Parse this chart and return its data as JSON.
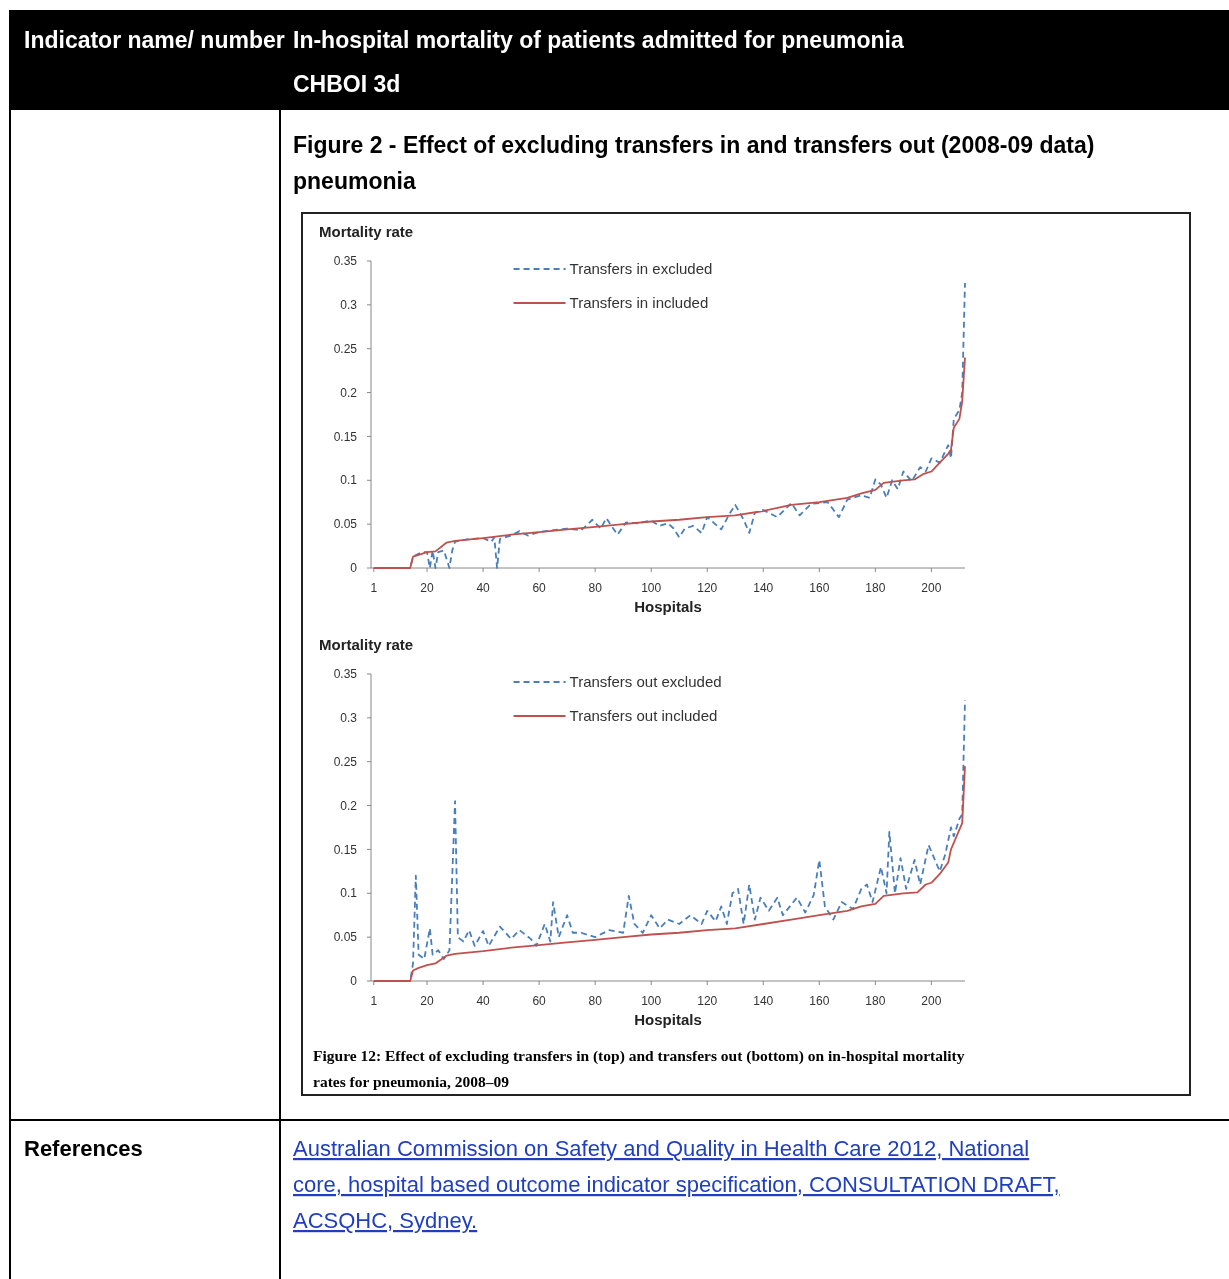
{
  "chart_data": [
    {
      "type": "line",
      "title": "Figure 2 - Effect of excluding transfers in and transfers out (2008-09 data) pneumonia",
      "ylabel": "Mortality rate",
      "xlabel": "Hospitals",
      "xlim": [
        0,
        212
      ],
      "ylim": [
        0,
        0.35
      ],
      "xticks": [
        1,
        20,
        40,
        60,
        80,
        100,
        120,
        140,
        160,
        180,
        200
      ],
      "yticks": [
        0,
        0.05,
        0.1,
        0.15,
        0.2,
        0.25,
        0.3,
        0.35
      ],
      "grid": false,
      "legend": "top",
      "marker": "none",
      "annotations": [
        "Indicator name/ number",
        "In-hospital mortality of patients admitted for pneumonia",
        "CHBOI 3d",
        "References",
        "Australian Commission on Safety and Quality in Health Care 2012, National core, hospital based outcome indicator specification, CONSULTATION DRAFT, ACSQHC, Sydney."
      ],
      "series": [
        {
          "name": "Transfers in excluded",
          "color": "#4a7ebb",
          "line_style": "dashed",
          "x": [
            1,
            14,
            15,
            18,
            20,
            21,
            22,
            23,
            24,
            26,
            28,
            29,
            30,
            35,
            40,
            43,
            44,
            45,
            46,
            50,
            53,
            56,
            60,
            70,
            75,
            79,
            82,
            84,
            86,
            88,
            91,
            95,
            100,
            103,
            106,
            108,
            110,
            112,
            115,
            118,
            120,
            125,
            128,
            130,
            133,
            135,
            137,
            140,
            145,
            150,
            153,
            157,
            163,
            167,
            170,
            175,
            178,
            180,
            182,
            184,
            186,
            188,
            190,
            193,
            196,
            198,
            200,
            203,
            206,
            207,
            208,
            210,
            211,
            212
          ],
          "values": [
            0,
            0,
            0.013,
            0.018,
            0.018,
            0,
            0.02,
            0,
            0.018,
            0.02,
            0,
            0.02,
            0.03,
            0.033,
            0.034,
            0.03,
            0.035,
            0,
            0.033,
            0.037,
            0.042,
            0.037,
            0.041,
            0.045,
            0.043,
            0.055,
            0.045,
            0.057,
            0.047,
            0.038,
            0.052,
            0.051,
            0.054,
            0.048,
            0.051,
            0.045,
            0.035,
            0.045,
            0.048,
            0.04,
            0.058,
            0.044,
            0.062,
            0.072,
            0.055,
            0.04,
            0.063,
            0.066,
            0.058,
            0.074,
            0.06,
            0.073,
            0.075,
            0.058,
            0.078,
            0.083,
            0.08,
            0.101,
            0.095,
            0.08,
            0.1,
            0.09,
            0.11,
            0.099,
            0.115,
            0.11,
            0.125,
            0.12,
            0.14,
            0.125,
            0.17,
            0.18,
            0.2,
            0.325
          ]
        },
        {
          "name": "Transfers in included",
          "color": "#c0504d",
          "line_style": "solid",
          "x": [
            1,
            14,
            15,
            17,
            20,
            23,
            27,
            30,
            40,
            50,
            60,
            70,
            80,
            90,
            100,
            110,
            120,
            130,
            140,
            150,
            160,
            170,
            175,
            180,
            183,
            190,
            194,
            197,
            200,
            203,
            206,
            207,
            208,
            210,
            211,
            212
          ],
          "values": [
            0,
            0,
            0.013,
            0.015,
            0.018,
            0.019,
            0.029,
            0.031,
            0.034,
            0.038,
            0.041,
            0.044,
            0.047,
            0.05,
            0.053,
            0.055,
            0.058,
            0.06,
            0.065,
            0.072,
            0.075,
            0.08,
            0.085,
            0.089,
            0.097,
            0.1,
            0.101,
            0.107,
            0.11,
            0.12,
            0.13,
            0.135,
            0.16,
            0.17,
            0.19,
            0.24
          ]
        }
      ]
    },
    {
      "type": "line",
      "ylabel": "Mortality rate",
      "xlabel": "Hospitals",
      "xlim": [
        0,
        212
      ],
      "ylim": [
        0,
        0.35
      ],
      "xticks": [
        1,
        20,
        40,
        60,
        80,
        100,
        120,
        140,
        160,
        180,
        200
      ],
      "yticks": [
        0,
        0.05,
        0.1,
        0.15,
        0.2,
        0.25,
        0.3,
        0.35
      ],
      "grid": false,
      "legend": "top",
      "marker": "none",
      "annotations": [
        "Figure 12: Effect of excluding transfers in (top) and transfers out (bottom) on in-hospital mortality rates for pneumonia, 2008–09"
      ],
      "series": [
        {
          "name": "Transfers out excluded",
          "color": "#4a7ebb",
          "line_style": "dashed",
          "x": [
            1,
            14,
            15,
            16,
            17,
            19,
            21,
            22,
            24,
            26,
            28,
            30,
            31,
            33,
            35,
            37,
            40,
            42,
            46,
            50,
            53,
            57,
            59,
            62,
            64,
            65,
            67,
            70,
            72,
            75,
            80,
            85,
            90,
            92,
            94,
            97,
            100,
            103,
            106,
            110,
            114,
            118,
            120,
            123,
            125,
            127,
            129,
            131,
            133,
            135,
            137,
            139,
            142,
            145,
            147,
            152,
            155,
            158,
            160,
            162,
            165,
            168,
            172,
            175,
            177,
            179,
            182,
            184,
            185,
            187,
            189,
            191,
            194,
            196,
            199,
            201,
            203,
            205,
            207,
            208,
            210,
            211,
            212
          ],
          "values": [
            0,
            0,
            0.02,
            0.12,
            0.03,
            0.025,
            0.06,
            0.03,
            0.035,
            0.025,
            0.035,
            0.205,
            0.05,
            0.045,
            0.058,
            0.04,
            0.057,
            0.04,
            0.062,
            0.048,
            0.058,
            0.048,
            0.04,
            0.065,
            0.045,
            0.09,
            0.05,
            0.075,
            0.055,
            0.055,
            0.05,
            0.058,
            0.055,
            0.097,
            0.065,
            0.055,
            0.075,
            0.06,
            0.07,
            0.065,
            0.075,
            0.065,
            0.08,
            0.068,
            0.085,
            0.065,
            0.1,
            0.105,
            0.065,
            0.11,
            0.07,
            0.095,
            0.08,
            0.095,
            0.075,
            0.095,
            0.078,
            0.098,
            0.138,
            0.085,
            0.07,
            0.09,
            0.082,
            0.105,
            0.11,
            0.09,
            0.13,
            0.1,
            0.17,
            0.1,
            0.14,
            0.105,
            0.138,
            0.11,
            0.155,
            0.14,
            0.125,
            0.145,
            0.175,
            0.165,
            0.185,
            0.19,
            0.32
          ]
        },
        {
          "name": "Transfers out included",
          "color": "#c0504d",
          "line_style": "solid",
          "x": [
            1,
            14,
            15,
            17,
            20,
            23,
            27,
            30,
            40,
            50,
            60,
            70,
            80,
            90,
            100,
            110,
            120,
            130,
            140,
            150,
            160,
            170,
            175,
            180,
            183,
            190,
            195,
            198,
            200,
            203,
            206,
            207,
            209,
            211,
            212
          ],
          "values": [
            0,
            0,
            0.012,
            0.015,
            0.018,
            0.02,
            0.029,
            0.031,
            0.034,
            0.038,
            0.041,
            0.044,
            0.047,
            0.05,
            0.053,
            0.055,
            0.058,
            0.06,
            0.065,
            0.07,
            0.075,
            0.08,
            0.085,
            0.088,
            0.097,
            0.1,
            0.101,
            0.11,
            0.112,
            0.122,
            0.135,
            0.15,
            0.165,
            0.18,
            0.245
          ]
        }
      ]
    }
  ]
}
